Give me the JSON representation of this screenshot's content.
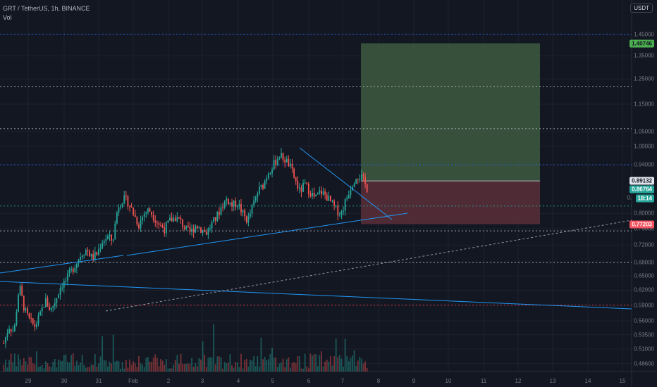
{
  "legend": {
    "symbol": "GRT / TetherUS, 1h, BINANCE",
    "indicator": "Vol"
  },
  "currency": "USDT",
  "price_axis": {
    "labels": [
      "1.45000",
      "1.35000",
      "1.25000",
      "1.15000",
      "1.05000",
      "1.00000",
      "0.94000",
      "0.80000",
      "0.76000",
      "0.72000",
      "0.68000",
      "0.65000",
      "0.62000",
      "0.59000",
      "0.56000",
      "0.53500",
      "0.51000",
      "0.48600"
    ],
    "partial_label": "0."
  },
  "price_tags": [
    {
      "id": "target",
      "text": "1.40746",
      "bg": "#4caf50",
      "fg": "#131722"
    },
    {
      "id": "entry",
      "text": "0.89132",
      "bg": "#e0e3eb",
      "fg": "#131722"
    },
    {
      "id": "current",
      "text": "0.86764",
      "bg": "#26a69a",
      "fg": "#ffffff"
    },
    {
      "id": "countdown",
      "text": "18:14",
      "bg": "#26a69a",
      "fg": "#ffffff"
    },
    {
      "id": "stop",
      "text": "0.77203",
      "bg": "#f7525f",
      "fg": "#ffffff"
    }
  ],
  "date_axis": [
    "29",
    "30",
    "31",
    "Feb",
    "2",
    "3",
    "4",
    "5",
    "6",
    "7",
    "8",
    "9",
    "10",
    "11",
    "12",
    "13",
    "14",
    "15"
  ],
  "colors": {
    "background": "#131722",
    "up": "#26a69a",
    "down": "#ef5350",
    "trendline": "#2196f3",
    "profit_zone": "#3d5a3f",
    "loss_zone": "#5a2f3a"
  },
  "chart_data": {
    "type": "candlestick",
    "interval": "1h",
    "x_range": [
      "29",
      "15"
    ],
    "ylim": [
      0.48,
      1.48
    ],
    "y_scale": "log",
    "horizontal_levels": [
      1.45,
      1.22,
      1.06,
      0.94,
      0.82,
      0.755,
      0.68,
      0.59
    ],
    "position": {
      "target": 1.40746,
      "entry": 0.89132,
      "stop": 0.77203
    },
    "last_price": 0.86764,
    "swing_path": [
      0.52,
      0.55,
      0.54,
      0.63,
      0.58,
      0.56,
      0.55,
      0.57,
      0.6,
      0.58,
      0.6,
      0.63,
      0.64,
      0.66,
      0.68,
      0.7,
      0.71,
      0.69,
      0.7,
      0.73,
      0.74,
      0.73,
      0.82,
      0.84,
      0.83,
      0.8,
      0.77,
      0.8,
      0.81,
      0.79,
      0.77,
      0.76,
      0.78,
      0.79,
      0.78,
      0.76,
      0.75,
      0.77,
      0.76,
      0.75,
      0.77,
      0.79,
      0.82,
      0.84,
      0.82,
      0.83,
      0.8,
      0.78,
      0.82,
      0.86,
      0.88,
      0.92,
      0.94,
      0.97,
      0.96,
      0.94,
      0.9,
      0.86,
      0.88,
      0.86,
      0.84,
      0.86,
      0.85,
      0.83,
      0.81,
      0.8,
      0.84,
      0.88,
      0.91,
      0.9,
      0.87
    ]
  }
}
